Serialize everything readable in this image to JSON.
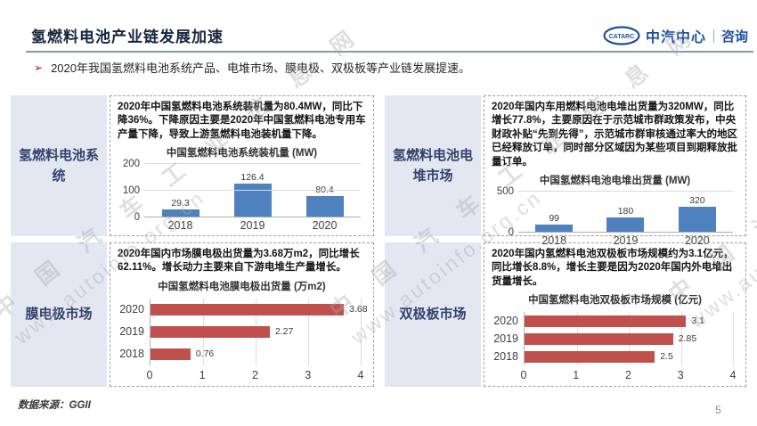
{
  "header": {
    "title": "氢燃料电池产业链发展加速",
    "logo": {
      "emblem_text": "CATARC",
      "brand": "中汽中心",
      "suffix": "咨询"
    }
  },
  "intro": {
    "marker": "➢",
    "text": "2020年我国氢燃料电池系统产品、电堆市场、膜电极、双极板等产业链发展提速。"
  },
  "panels": [
    {
      "label": "氢燃料电池系统",
      "description": "2020年中国氢燃料电池系统装机量为80.4MW，同比下降36%。下降原因主要是2020年中国氢燃料电池专用车产量下降，导致上游氢燃料电池装机量下降。"
    },
    {
      "label": "氢燃料电池电堆市场",
      "description": "2020年国内车用燃料电池电堆出货量为320MW，同比增长77.8%，主要原因在于示范城市群政策发布，中央财政补贴“先到先得”，示范城市群审核通过率大的地区已经释放订单，同时部分区域因为某些项目到期释放批量订单。"
    },
    {
      "label": "膜电极市场",
      "description": "2020年国内市场膜电极出货量为3.68万m2，同比增长62.11%。增长动力主要来自下游电堆生产量增长。"
    },
    {
      "label": "双极板市场",
      "description": "2020年国内氢燃料电池双极板市场规模约为3.1亿元，同比增长8.8%，增长主要是因为2020年国内外电堆出货量增长。"
    }
  ],
  "chart_data": [
    {
      "type": "bar",
      "title": "中国氢燃料电池系统装机量 (MW)",
      "categories": [
        "2018",
        "2019",
        "2020"
      ],
      "values": [
        29.3,
        126.4,
        80.4
      ],
      "ylim": [
        0,
        200
      ],
      "yticks": [
        0,
        100,
        200
      ],
      "bar_color": "#4E81BD",
      "grid": true,
      "legend": false
    },
    {
      "type": "bar",
      "title": "中国氢燃料电池电堆出货量 (MW)",
      "categories": [
        "2018",
        "2019",
        "2020"
      ],
      "values": [
        99,
        180,
        320
      ],
      "ylim": [
        0,
        500
      ],
      "yticks": [
        0,
        500
      ],
      "bar_color": "#4E81BD",
      "grid": true,
      "legend": false
    },
    {
      "type": "horizontal-bar",
      "title": "中国氢燃料电池膜电极出货量 (万m2)",
      "categories": [
        "2020",
        "2019",
        "2018"
      ],
      "values": [
        3.68,
        2.27,
        0.76
      ],
      "xlim": [
        0,
        4
      ],
      "xticks": [
        0,
        1,
        2,
        3,
        4
      ],
      "bar_color": "#C0504D",
      "grid": true,
      "legend": false
    },
    {
      "type": "horizontal-bar",
      "title": "中国氢燃料电池双极板市场规模 (亿元)",
      "categories": [
        "2020",
        "2019",
        "2018"
      ],
      "values": [
        3.1,
        2.85,
        2.5
      ],
      "xlim": [
        0,
        4
      ],
      "xticks": [
        0,
        1,
        2,
        3,
        4
      ],
      "bar_color": "#C0504D",
      "grid": true,
      "legend": false
    }
  ],
  "watermark": {
    "line1": "中 国 汽 车 工 业 信 息 网",
    "line2": "www.autoinfo.org.cn"
  },
  "footer": {
    "source": "数据来源：GGII",
    "page": "5"
  },
  "colors": {
    "bar_blue": "#4E81BD",
    "bar_red": "#C0504D",
    "brand_blue": "#1D4F9E",
    "accent_red": "#C00000",
    "sidebar_bg": "#E3E7F1"
  }
}
